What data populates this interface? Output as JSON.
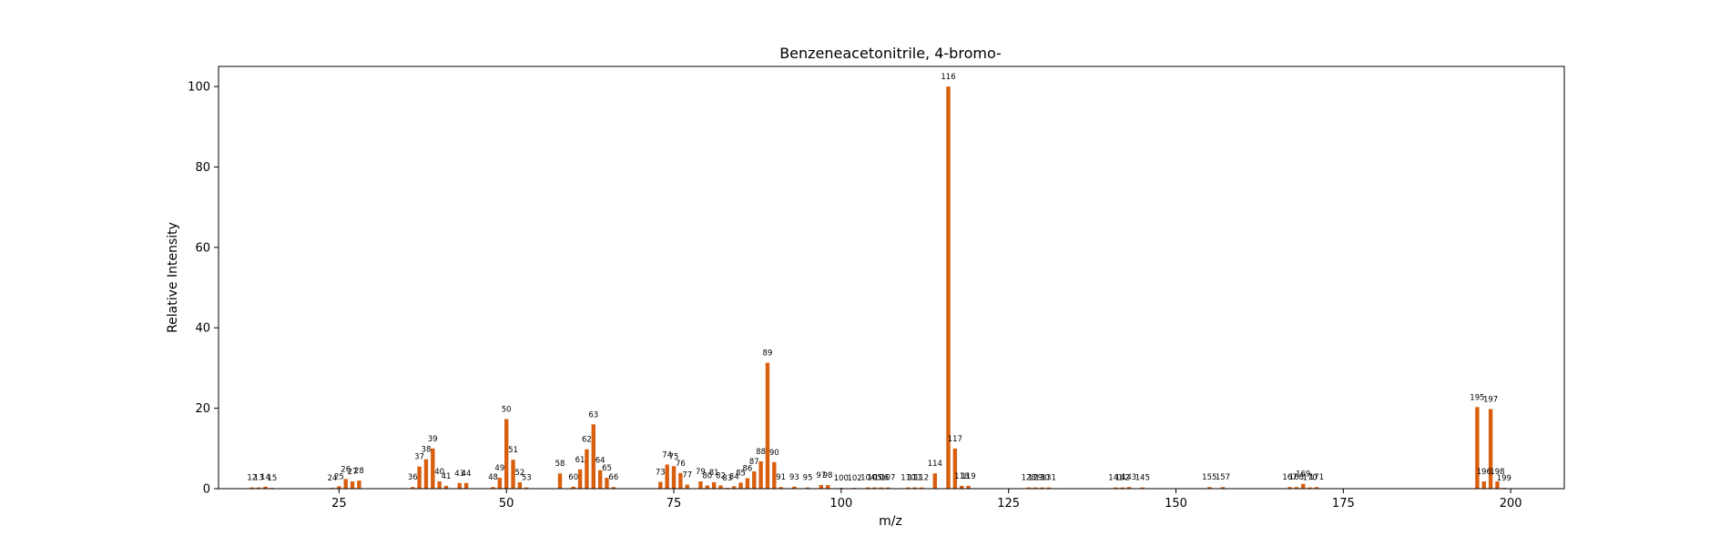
{
  "chart_data": {
    "type": "bar",
    "title": "Benzeneacetonitrile, 4-bromo-",
    "xlabel": "m/z",
    "ylabel": "Relative Intensity",
    "xlim": [
      7,
      208
    ],
    "ylim": [
      0,
      105
    ],
    "xticks": [
      25,
      50,
      75,
      100,
      125,
      150,
      175,
      200
    ],
    "yticks": [
      0,
      20,
      40,
      60,
      80,
      100
    ],
    "grid": false,
    "bar_color": "#d95f0e",
    "peaks": [
      {
        "mz": 12,
        "intensity": 0.3
      },
      {
        "mz": 13,
        "intensity": 0.3
      },
      {
        "mz": 14,
        "intensity": 0.5
      },
      {
        "mz": 15,
        "intensity": 0.2
      },
      {
        "mz": 24,
        "intensity": 0.2
      },
      {
        "mz": 25,
        "intensity": 0.6
      },
      {
        "mz": 26,
        "intensity": 2.4
      },
      {
        "mz": 27,
        "intensity": 1.8
      },
      {
        "mz": 28,
        "intensity": 2.0
      },
      {
        "mz": 36,
        "intensity": 0.4
      },
      {
        "mz": 37,
        "intensity": 5.5
      },
      {
        "mz": 38,
        "intensity": 7.3
      },
      {
        "mz": 39,
        "intensity": 10.0
      },
      {
        "mz": 40,
        "intensity": 1.8
      },
      {
        "mz": 41,
        "intensity": 0.7
      },
      {
        "mz": 43,
        "intensity": 1.4
      },
      {
        "mz": 44,
        "intensity": 1.4
      },
      {
        "mz": 48,
        "intensity": 0.4
      },
      {
        "mz": 49,
        "intensity": 2.7
      },
      {
        "mz": 50,
        "intensity": 17.3
      },
      {
        "mz": 51,
        "intensity": 7.2
      },
      {
        "mz": 52,
        "intensity": 1.6
      },
      {
        "mz": 53,
        "intensity": 0.3
      },
      {
        "mz": 58,
        "intensity": 3.8
      },
      {
        "mz": 60,
        "intensity": 0.5
      },
      {
        "mz": 61,
        "intensity": 4.8
      },
      {
        "mz": 62,
        "intensity": 9.8
      },
      {
        "mz": 63,
        "intensity": 16.0
      },
      {
        "mz": 64,
        "intensity": 4.6
      },
      {
        "mz": 65,
        "intensity": 2.7
      },
      {
        "mz": 66,
        "intensity": 0.4
      },
      {
        "mz": 73,
        "intensity": 1.7
      },
      {
        "mz": 74,
        "intensity": 6.0
      },
      {
        "mz": 75,
        "intensity": 5.6
      },
      {
        "mz": 76,
        "intensity": 3.9
      },
      {
        "mz": 77,
        "intensity": 1.0
      },
      {
        "mz": 79,
        "intensity": 1.8
      },
      {
        "mz": 80,
        "intensity": 0.8
      },
      {
        "mz": 81,
        "intensity": 1.6
      },
      {
        "mz": 82,
        "intensity": 0.8
      },
      {
        "mz": 83,
        "intensity": 0.2
      },
      {
        "mz": 84,
        "intensity": 0.6
      },
      {
        "mz": 85,
        "intensity": 1.5
      },
      {
        "mz": 86,
        "intensity": 2.6
      },
      {
        "mz": 87,
        "intensity": 4.3
      },
      {
        "mz": 88,
        "intensity": 6.8
      },
      {
        "mz": 89,
        "intensity": 31.3
      },
      {
        "mz": 90,
        "intensity": 6.6
      },
      {
        "mz": 91,
        "intensity": 0.4
      },
      {
        "mz": 93,
        "intensity": 0.5
      },
      {
        "mz": 95,
        "intensity": 0.3
      },
      {
        "mz": 97,
        "intensity": 0.9
      },
      {
        "mz": 98,
        "intensity": 0.9
      },
      {
        "mz": 100,
        "intensity": 0.2
      },
      {
        "mz": 102,
        "intensity": 0.2
      },
      {
        "mz": 104,
        "intensity": 0.3
      },
      {
        "mz": 105,
        "intensity": 0.3
      },
      {
        "mz": 106,
        "intensity": 0.3
      },
      {
        "mz": 107,
        "intensity": 0.3
      },
      {
        "mz": 110,
        "intensity": 0.3
      },
      {
        "mz": 111,
        "intensity": 0.3
      },
      {
        "mz": 112,
        "intensity": 0.3
      },
      {
        "mz": 114,
        "intensity": 3.8
      },
      {
        "mz": 116,
        "intensity": 100.0
      },
      {
        "mz": 117,
        "intensity": 10.0
      },
      {
        "mz": 118,
        "intensity": 0.7
      },
      {
        "mz": 119,
        "intensity": 0.7
      },
      {
        "mz": 128,
        "intensity": 0.3
      },
      {
        "mz": 129,
        "intensity": 0.3
      },
      {
        "mz": 130,
        "intensity": 0.3
      },
      {
        "mz": 131,
        "intensity": 0.3
      },
      {
        "mz": 141,
        "intensity": 0.3
      },
      {
        "mz": 142,
        "intensity": 0.3
      },
      {
        "mz": 143,
        "intensity": 0.4
      },
      {
        "mz": 145,
        "intensity": 0.3
      },
      {
        "mz": 155,
        "intensity": 0.4
      },
      {
        "mz": 157,
        "intensity": 0.4
      },
      {
        "mz": 167,
        "intensity": 0.4
      },
      {
        "mz": 168,
        "intensity": 0.4
      },
      {
        "mz": 169,
        "intensity": 1.2
      },
      {
        "mz": 170,
        "intensity": 0.3
      },
      {
        "mz": 171,
        "intensity": 0.4
      },
      {
        "mz": 195,
        "intensity": 20.3
      },
      {
        "mz": 196,
        "intensity": 1.8
      },
      {
        "mz": 197,
        "intensity": 19.8
      },
      {
        "mz": 198,
        "intensity": 1.8
      },
      {
        "mz": 199,
        "intensity": 0.2
      }
    ]
  }
}
